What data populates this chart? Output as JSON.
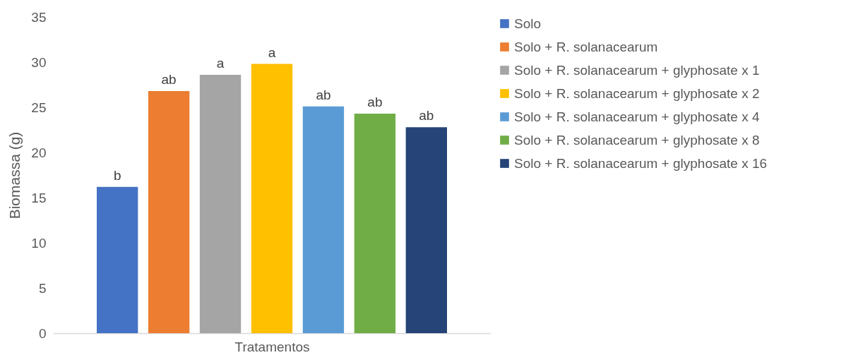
{
  "chart_data": {
    "type": "bar",
    "xlabel": "Tratamentos",
    "ylabel": "Biomassa (g)",
    "categories": [
      null
    ],
    "series": [
      {
        "name": "Solo",
        "color": "#4472c4",
        "values": [
          16.2
        ],
        "value_labels": [
          "b"
        ]
      },
      {
        "name": "Solo + R. solanacearum",
        "color": "#ed7d31",
        "values": [
          26.8
        ],
        "value_labels": [
          "ab"
        ]
      },
      {
        "name": "Solo + R. solanacearum + glyphosate x 1",
        "color": "#a5a5a5",
        "values": [
          28.6
        ],
        "value_labels": [
          "a"
        ]
      },
      {
        "name": "Solo + R. solanacearum + glyphosate x 2",
        "color": "#ffc000",
        "values": [
          29.8
        ],
        "value_labels": [
          "a"
        ]
      },
      {
        "name": "Solo + R. solanacearum + glyphosate x 4",
        "color": "#5b9bd5",
        "values": [
          25.1
        ],
        "value_labels": [
          "ab"
        ]
      },
      {
        "name": "Solo + R. solanacearum + glyphosate x 8",
        "color": "#70ad47",
        "values": [
          24.3
        ],
        "value_labels": [
          "ab"
        ]
      },
      {
        "name": "Solo + R. solanacearum + glyphosate x 16",
        "color": "#264478",
        "values": [
          22.8
        ],
        "value_labels": [
          "ab"
        ]
      }
    ],
    "ylim": [
      0,
      35
    ],
    "yticks": [
      0,
      5,
      10,
      15,
      20,
      25,
      30,
      35
    ],
    "grid": false,
    "legend": "right"
  }
}
